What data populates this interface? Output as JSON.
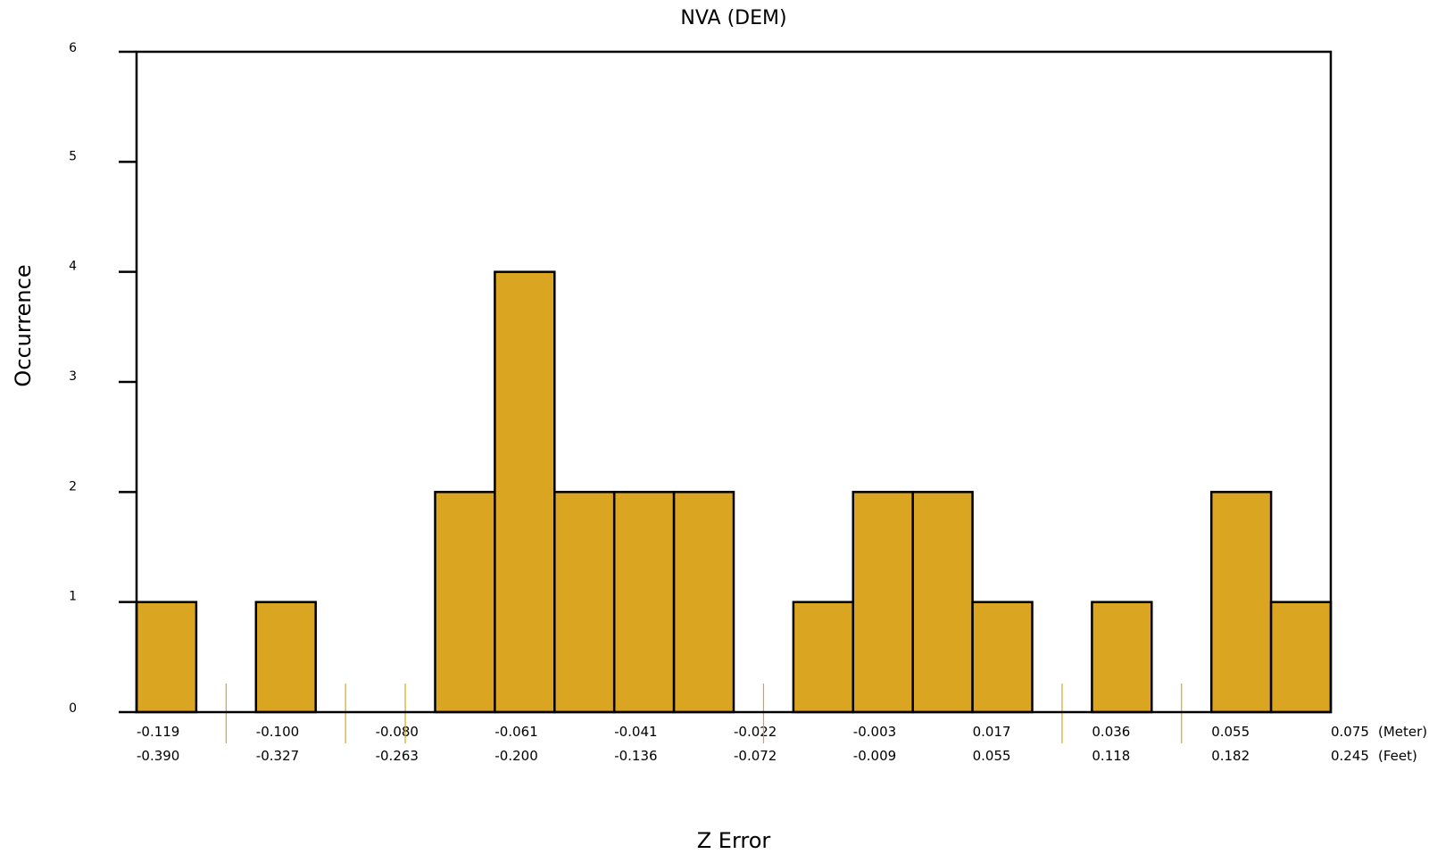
{
  "chart_data": {
    "type": "bar",
    "title": "NVA (DEM)",
    "xlabel": "Z Error",
    "ylabel": "Occurrence",
    "ylim": [
      0,
      6
    ],
    "yticks": [
      0,
      1,
      2,
      3,
      4,
      5,
      6
    ],
    "bin_width_m": 0.00975,
    "x_range_m": [
      -0.119,
      0.075
    ],
    "bin_counts": [
      1,
      0,
      1,
      0,
      0,
      2,
      4,
      2,
      2,
      2,
      0,
      1,
      2,
      2,
      1,
      0,
      1,
      0,
      2,
      1
    ],
    "x_tick_rows": [
      {
        "unit": "(Meter)",
        "labels": [
          "-0.119",
          "-0.100",
          "-0.080",
          "-0.061",
          "-0.041",
          "-0.022",
          "-0.003",
          "0.017",
          "0.036",
          "0.055",
          "0.075"
        ]
      },
      {
        "unit": "(Feet)",
        "labels": [
          "-0.390",
          "-0.327",
          "-0.263",
          "-0.200",
          "-0.136",
          "-0.072",
          "-0.009",
          "0.055",
          "0.118",
          "0.182",
          "0.245"
        ]
      }
    ],
    "grid": false,
    "colors": {
      "bar": "#DAA520",
      "marker": "#DAA520",
      "axis": "#000000"
    }
  }
}
